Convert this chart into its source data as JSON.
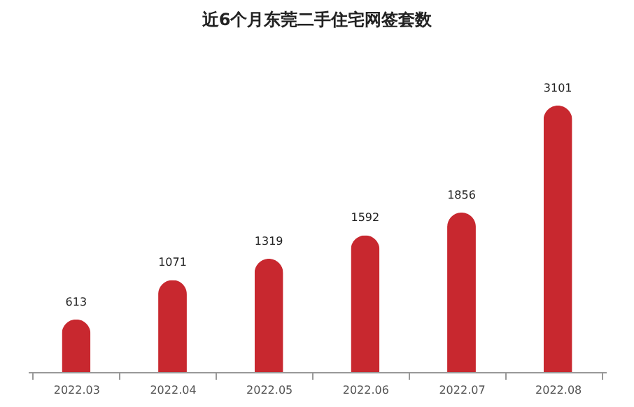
{
  "chart_data": {
    "type": "bar",
    "title": "近6个月东莞二手住宅网签套数",
    "categories": [
      "2022.03",
      "2022.04",
      "2022.05",
      "2022.06",
      "2022.07",
      "2022.08"
    ],
    "values": [
      613,
      1071,
      1319,
      1592,
      1856,
      3101
    ],
    "color": "#c8282f",
    "data_labels": true
  }
}
